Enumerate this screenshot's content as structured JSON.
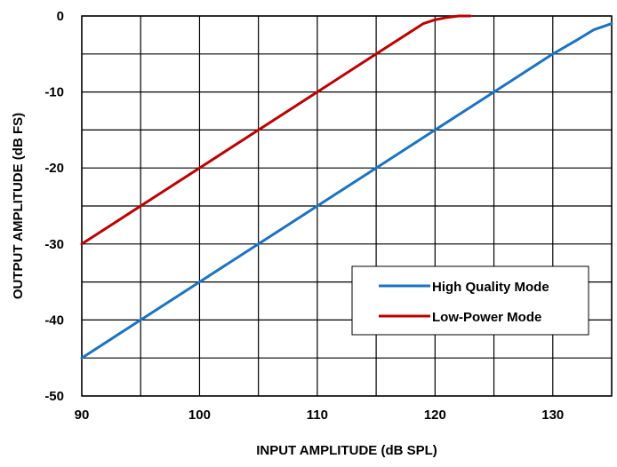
{
  "chart_data": {
    "type": "line",
    "title": "",
    "xlabel": "INPUT AMPLITUDE (dB SPL)",
    "ylabel": "OUTPUT AMPLITUDE (dB FS)",
    "xlim": [
      90,
      135
    ],
    "ylim": [
      -50,
      0
    ],
    "x_ticks": [
      90,
      100,
      110,
      120,
      130
    ],
    "y_ticks": [
      0,
      -10,
      -20,
      -30,
      -40,
      -50
    ],
    "x_tick_labels": [
      "90",
      "100",
      "110",
      "120",
      "130"
    ],
    "y_tick_labels": [
      "0",
      "-10",
      "-20",
      "-30",
      "-40",
      "-50"
    ],
    "x_gridlines": [
      90,
      95,
      100,
      105,
      110,
      115,
      120,
      125,
      130,
      135
    ],
    "y_gridlines": [
      0,
      -5,
      -10,
      -15,
      -20,
      -25,
      -30,
      -35,
      -40,
      -45,
      -50
    ],
    "grid": true,
    "legend_position": "bottom-right",
    "series": [
      {
        "name": "High Quality Mode",
        "color": "#1a73c4",
        "x": [
          90,
          95,
          100,
          105,
          110,
          115,
          120,
          125,
          130,
          132,
          133.5,
          135
        ],
        "y": [
          -45,
          -40,
          -35,
          -30,
          -25,
          -20,
          -15,
          -10,
          -5,
          -3.2,
          -1.8,
          -1
        ]
      },
      {
        "name": "Low-Power Mode",
        "color": "#c00000",
        "x": [
          90,
          95,
          100,
          105,
          110,
          115,
          119,
          120,
          121,
          122,
          123
        ],
        "y": [
          -30,
          -25,
          -20,
          -15,
          -10,
          -5,
          -1,
          -0.5,
          -0.2,
          0,
          0
        ]
      }
    ]
  }
}
